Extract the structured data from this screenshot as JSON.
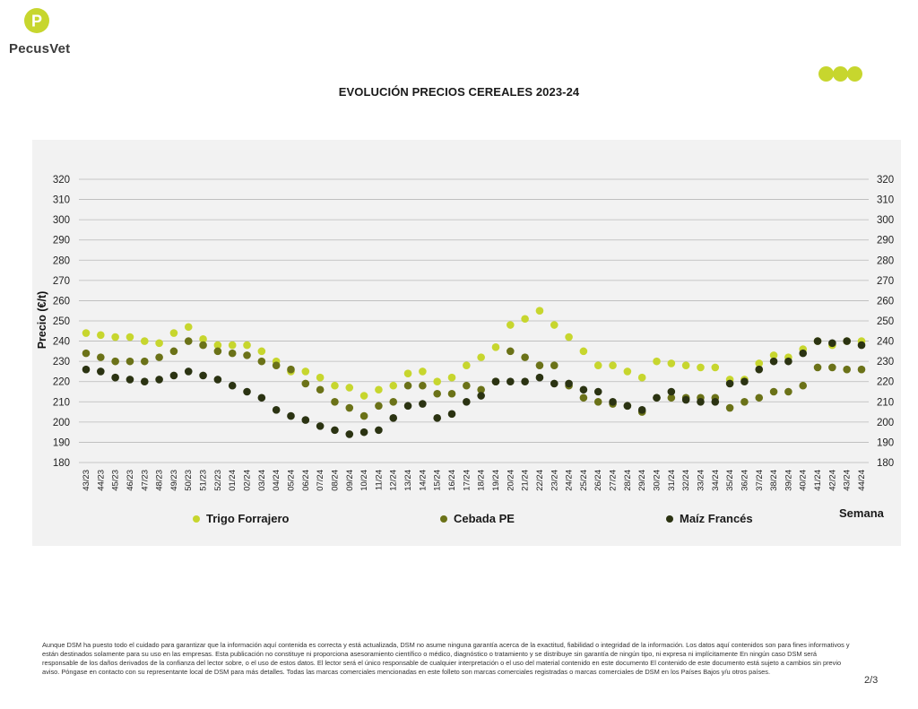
{
  "brand": {
    "name": "PecusVet",
    "logo_letter": "P"
  },
  "colors": {
    "trigo": "#c7d62e",
    "cebada": "#6b7218",
    "maiz": "#2b3312",
    "accent": "#c7d62e",
    "panel": "#f2f2f2",
    "grid": "#b8b8b8"
  },
  "footer": {
    "disclaimer": "Aunque DSM ha puesto todo el cuidado para garantizar que la información aquí contenida es correcta y está actualizada, DSM no asume ninguna garantía acerca de la exactitud, fiabilidad o integridad de la información. Los datos aquí contenidos son para fines informativos y están destinados solamente para su uso en las empresas. Esta publicación no constituye ni proporciona asesoramiento científico o médico, diagnóstico o tratamiento y se distribuye sin garantía de ningún tipo, ni expresa ni implícitamente En ningún caso DSM será responsable de los daños derivados de la confianza del lector sobre, o el uso de estos datos. El lector será el único responsable de cualquier interpretación o el uso del material contenido en este documento El contenido de este documento está sujeto a cambios sin previo aviso. Póngase en contacto con su representante local de DSM para más detalles. Todas las marcas comerciales mencionadas en este folleto son marcas comerciales registradas o marcas comerciales de DSM en los Países Bajos y/u otros países.",
    "page": "2/3"
  },
  "chart_data": {
    "type": "scatter",
    "title": "EVOLUCIÓN PRECIOS CEREALES 2023-24",
    "xlabel": "Semana",
    "ylabel": "Precio (€/t)",
    "ylim": [
      180,
      320
    ],
    "yticks": [
      180,
      190,
      200,
      210,
      220,
      230,
      240,
      250,
      260,
      270,
      280,
      290,
      300,
      310,
      320
    ],
    "grid": true,
    "legend_position": "bottom",
    "categories": [
      "43/23",
      "44/23",
      "45/23",
      "46/23",
      "47/23",
      "48/23",
      "49/23",
      "50/23",
      "51/23",
      "52/23",
      "01/24",
      "02/24",
      "03/24",
      "04/24",
      "05/24",
      "06/24",
      "07/24",
      "08/24",
      "09/24",
      "10/24",
      "11/24",
      "12/24",
      "13/24",
      "14/24",
      "15/24",
      "16/24",
      "17/24",
      "18/24",
      "19/24",
      "20/24",
      "21/24",
      "22/24",
      "23/24",
      "24/24",
      "25/24",
      "26/24",
      "27/24",
      "28/24",
      "29/24",
      "30/24",
      "31/24",
      "32/24",
      "33/24",
      "34/24",
      "35/24",
      "36/24",
      "37/24",
      "38/24",
      "39/24",
      "40/24",
      "41/24",
      "42/24",
      "43/24",
      "44/24"
    ],
    "series": [
      {
        "name": "Trigo Forrajero",
        "color": "#c7d62e",
        "values": [
          244,
          243,
          242,
          242,
          240,
          239,
          244,
          247,
          241,
          238,
          238,
          238,
          235,
          230,
          225,
          225,
          222,
          218,
          217,
          213,
          216,
          218,
          224,
          225,
          220,
          222,
          228,
          232,
          237,
          248,
          251,
          255,
          248,
          242,
          235,
          228,
          228,
          225,
          222,
          230,
          229,
          228,
          227,
          227,
          221,
          221,
          229,
          233,
          232,
          236,
          240,
          238,
          240,
          240
        ]
      },
      {
        "name": "Cebada PE",
        "color": "#6b7218",
        "values": [
          234,
          232,
          230,
          230,
          230,
          232,
          235,
          240,
          238,
          235,
          234,
          233,
          230,
          228,
          226,
          219,
          216,
          210,
          207,
          203,
          208,
          210,
          218,
          218,
          214,
          214,
          218,
          216,
          220,
          235,
          232,
          228,
          228,
          218,
          212,
          210,
          209,
          208,
          205,
          212,
          212,
          212,
          212,
          212,
          207,
          210,
          212,
          215,
          215,
          218,
          227,
          227,
          226,
          226
        ]
      },
      {
        "name": "Maíz Francés",
        "color": "#2b3312",
        "values": [
          226,
          225,
          222,
          221,
          220,
          221,
          223,
          225,
          223,
          221,
          218,
          215,
          212,
          206,
          203,
          201,
          198,
          196,
          194,
          195,
          196,
          202,
          208,
          209,
          202,
          204,
          210,
          213,
          220,
          220,
          220,
          222,
          219,
          219,
          216,
          215,
          210,
          208,
          206,
          212,
          215,
          211,
          210,
          210,
          219,
          220,
          226,
          230,
          230,
          234,
          240,
          239,
          240,
          238
        ]
      }
    ]
  }
}
